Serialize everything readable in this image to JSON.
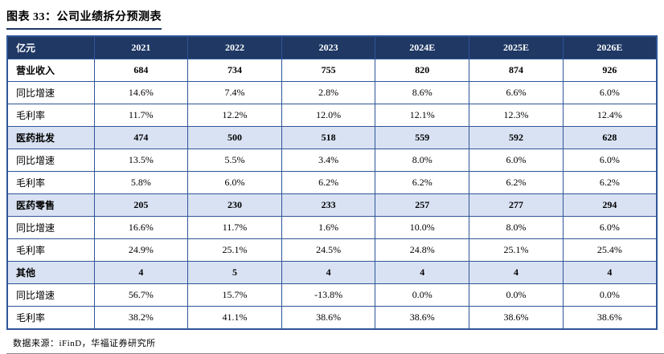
{
  "title": "图表 33：公司业绩拆分预测表",
  "footer": "数据来源：iFinD，华福证券研究所",
  "colors": {
    "header_bg": "#1F3864",
    "table_border": "#2F5597",
    "section_row_bg": "#D9E2F3",
    "title_underline": "#1F3864",
    "header_text": "#FFFFFF"
  },
  "table": {
    "header": [
      "亿元",
      "2021",
      "2022",
      "2023",
      "2024E",
      "2025E",
      "2026E"
    ],
    "rows": [
      {
        "label": "营业收入",
        "type": "total",
        "values": [
          "684",
          "734",
          "755",
          "820",
          "874",
          "926"
        ]
      },
      {
        "label": "同比增速",
        "type": "detail",
        "values": [
          "14.6%",
          "7.4%",
          "2.8%",
          "8.6%",
          "6.6%",
          "6.0%"
        ]
      },
      {
        "label": "毛利率",
        "type": "detail",
        "values": [
          "11.7%",
          "12.2%",
          "12.0%",
          "12.1%",
          "12.3%",
          "12.4%"
        ]
      },
      {
        "label": "医药批发",
        "type": "section",
        "values": [
          "474",
          "500",
          "518",
          "559",
          "592",
          "628"
        ]
      },
      {
        "label": "同比增速",
        "type": "detail",
        "values": [
          "13.5%",
          "5.5%",
          "3.4%",
          "8.0%",
          "6.0%",
          "6.0%"
        ]
      },
      {
        "label": "毛利率",
        "type": "detail",
        "values": [
          "5.8%",
          "6.0%",
          "6.2%",
          "6.2%",
          "6.2%",
          "6.2%"
        ]
      },
      {
        "label": "医药零售",
        "type": "section",
        "values": [
          "205",
          "230",
          "233",
          "257",
          "277",
          "294"
        ]
      },
      {
        "label": "同比增速",
        "type": "detail",
        "values": [
          "16.6%",
          "11.7%",
          "1.6%",
          "10.0%",
          "8.0%",
          "6.0%"
        ]
      },
      {
        "label": "毛利率",
        "type": "detail",
        "values": [
          "24.9%",
          "25.1%",
          "24.5%",
          "24.8%",
          "25.1%",
          "25.4%"
        ]
      },
      {
        "label": "其他",
        "type": "section",
        "values": [
          "4",
          "5",
          "4",
          "4",
          "4",
          "4"
        ]
      },
      {
        "label": "同比增速",
        "type": "detail",
        "values": [
          "56.7%",
          "15.7%",
          "-13.8%",
          "0.0%",
          "0.0%",
          "0.0%"
        ]
      },
      {
        "label": "毛利率",
        "type": "detail",
        "values": [
          "38.2%",
          "41.1%",
          "38.6%",
          "38.6%",
          "38.6%",
          "38.6%"
        ]
      }
    ]
  }
}
